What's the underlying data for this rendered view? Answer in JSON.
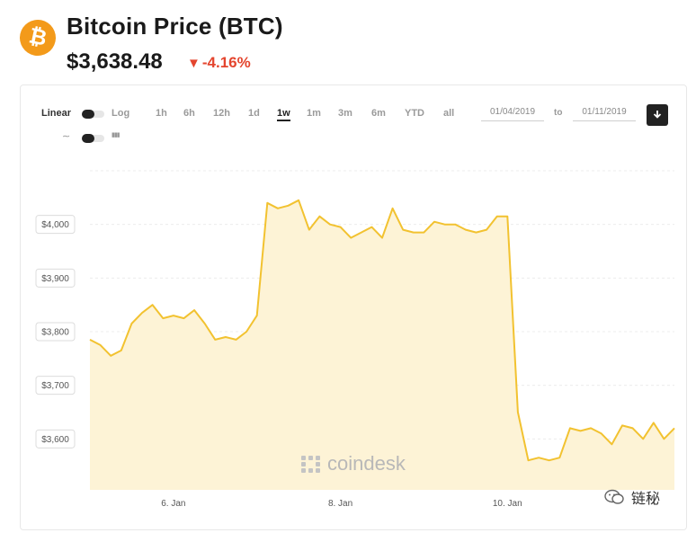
{
  "header": {
    "logo_glyph": "₿",
    "title": "Bitcoin Price (BTC)",
    "price": "$3,638.48",
    "change_arrow": "▼",
    "change": "-4.16%",
    "change_color": "#e4452e"
  },
  "controls": {
    "scale_linear": "Linear",
    "scale_log": "Log",
    "line_icon": "∼",
    "bar_icon": "▮▮▮",
    "ranges": [
      "1h",
      "6h",
      "12h",
      "1d",
      "1w",
      "1m",
      "3m",
      "6m",
      "YTD",
      "all"
    ],
    "active_range": "1w",
    "date_from": "01/04/2019",
    "to_label": "to",
    "date_to": "01/11/2019",
    "download_icon": "download-icon"
  },
  "watermark": "coindesk",
  "wechat": {
    "icon": "wechat-icon",
    "label": "链秘"
  },
  "chart_data": {
    "type": "area",
    "line_color": "#f2c230",
    "fill_color": "#fdf3d6",
    "grid": true,
    "y_tick_labels": [
      "$4,000",
      "$3,900",
      "$3,800",
      "$3,700",
      "$3,600"
    ],
    "y_ticks": [
      4000,
      3900,
      3800,
      3700,
      3600
    ],
    "ylim": [
      3505,
      4100
    ],
    "x_tick_labels": [
      "6. Jan",
      "8. Jan",
      "10. Jan"
    ],
    "x_ticks": [
      "2019-01-06",
      "2019-01-08",
      "2019-01-10"
    ],
    "xlim": [
      "2019-01-05",
      "2019-01-12"
    ],
    "x": [
      "2019-01-05",
      "2019-01-05 03:00",
      "2019-01-05 06:00",
      "2019-01-05 09:00",
      "2019-01-05 12:00",
      "2019-01-05 15:00",
      "2019-01-05 18:00",
      "2019-01-05 21:00",
      "2019-01-06",
      "2019-01-06 03:00",
      "2019-01-06 06:00",
      "2019-01-06 09:00",
      "2019-01-06 12:00",
      "2019-01-06 15:00",
      "2019-01-06 18:00",
      "2019-01-06 21:00",
      "2019-01-07",
      "2019-01-07 03:00",
      "2019-01-07 06:00",
      "2019-01-07 09:00",
      "2019-01-07 12:00",
      "2019-01-07 15:00",
      "2019-01-07 18:00",
      "2019-01-07 21:00",
      "2019-01-08",
      "2019-01-08 03:00",
      "2019-01-08 06:00",
      "2019-01-08 09:00",
      "2019-01-08 12:00",
      "2019-01-08 15:00",
      "2019-01-08 18:00",
      "2019-01-08 21:00",
      "2019-01-09",
      "2019-01-09 03:00",
      "2019-01-09 06:00",
      "2019-01-09 09:00",
      "2019-01-09 12:00",
      "2019-01-09 15:00",
      "2019-01-09 18:00",
      "2019-01-09 21:00",
      "2019-01-10",
      "2019-01-10 03:00",
      "2019-01-10 06:00",
      "2019-01-10 09:00",
      "2019-01-10 12:00",
      "2019-01-10 15:00",
      "2019-01-10 18:00",
      "2019-01-10 21:00",
      "2019-01-11",
      "2019-01-11 03:00",
      "2019-01-11 06:00",
      "2019-01-11 09:00",
      "2019-01-11 12:00",
      "2019-01-11 15:00",
      "2019-01-11 18:00",
      "2019-01-11 21:00",
      "2019-01-12"
    ],
    "values": [
      3785,
      3775,
      3755,
      3765,
      3815,
      3835,
      3850,
      3825,
      3830,
      3825,
      3840,
      3815,
      3785,
      3790,
      3785,
      3800,
      3830,
      4040,
      4030,
      4035,
      4045,
      3990,
      4015,
      4000,
      3995,
      3975,
      3985,
      3995,
      3975,
      4030,
      3990,
      3985,
      3985,
      4005,
      4000,
      4000,
      3990,
      3985,
      3990,
      4015,
      4015,
      3650,
      3560,
      3565,
      3560,
      3565,
      3620,
      3615,
      3620,
      3610,
      3590,
      3625,
      3620,
      3600,
      3630,
      3600,
      3620
    ]
  }
}
